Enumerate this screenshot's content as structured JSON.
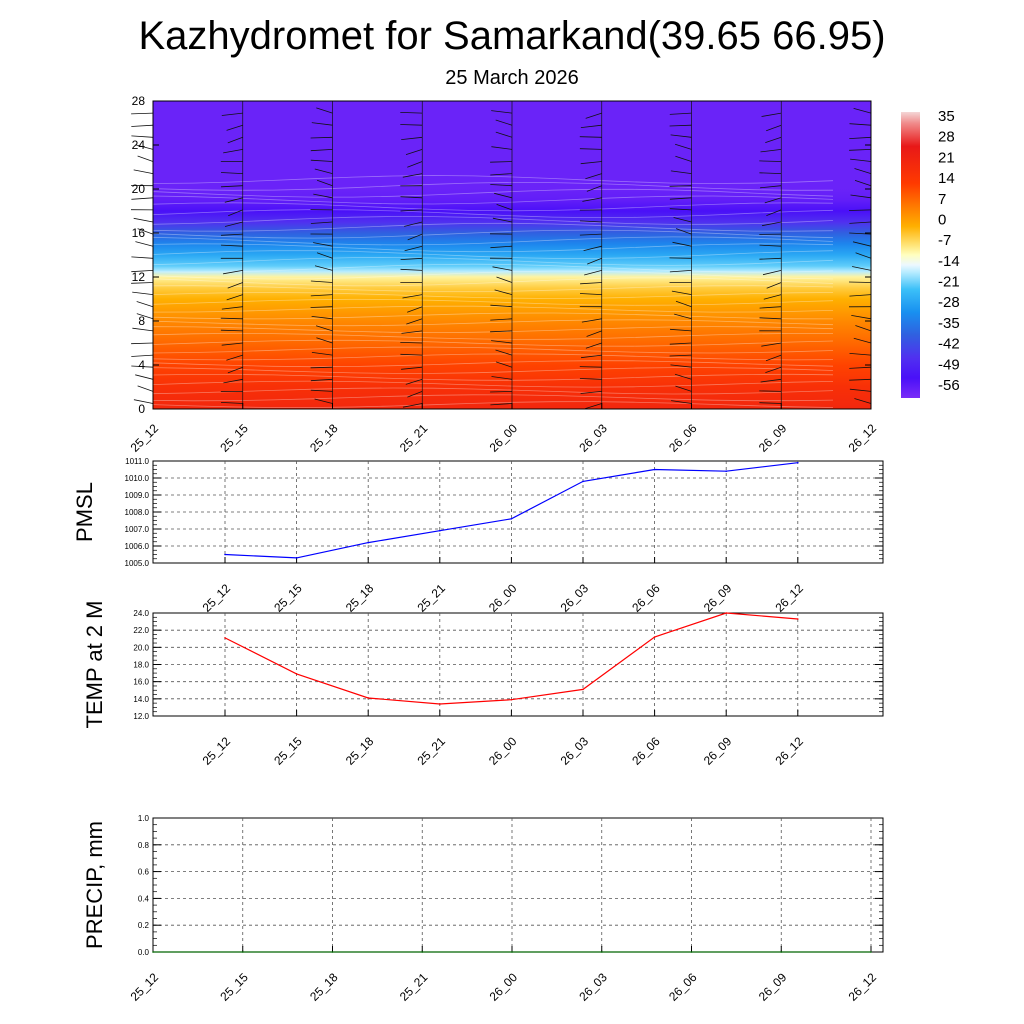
{
  "header": {
    "title": "Kazhydromet for Samarkand(39.65 66.95)",
    "subtitle": "25 March 2026"
  },
  "colors": {
    "pmsl_line": "#0000ff",
    "temp_line": "#ff0000",
    "precip_line": "#006400",
    "grid": "#555555"
  },
  "chart_data": [
    {
      "type": "heatmap",
      "name": "vertical-temperature-section",
      "x_ticks": [
        "25_12",
        "25_15",
        "25_18",
        "25_21",
        "26_00",
        "26_03",
        "26_06",
        "26_09",
        "26_12"
      ],
      "y_ticks": [
        0,
        4,
        8,
        12,
        16,
        20,
        24,
        28
      ],
      "ylim": [
        0,
        28
      ],
      "colorbar": {
        "labels": [
          "35",
          "28",
          "21",
          "14",
          "7",
          "0",
          "-7",
          "-14",
          "-21",
          "-28",
          "-35",
          "-42",
          "-49",
          "-56"
        ]
      },
      "profile": {
        "z": [
          0,
          2,
          4,
          6,
          8,
          10,
          11,
          12,
          12.5,
          13,
          14,
          15,
          16,
          17,
          18,
          19,
          20,
          28
        ],
        "t": [
          21,
          19,
          16,
          12,
          8,
          3,
          0,
          -5,
          -13,
          -18,
          -25,
          -32,
          -40,
          -48,
          -54,
          -57,
          -58,
          -58
        ]
      }
    },
    {
      "type": "line",
      "name": "pmsl",
      "ylabel": "PMSL",
      "x_ticks": [
        "25_12",
        "25_15",
        "25_18",
        "25_21",
        "26_00",
        "26_03",
        "26_06",
        "26_09",
        "26_12"
      ],
      "y_ticks": [
        "1005.0",
        "1006.0",
        "1007.0",
        "1008.0",
        "1009.0",
        "1010.0",
        "1011.0"
      ],
      "ylim": [
        1005,
        1011
      ],
      "values": [
        1005.5,
        1005.3,
        1006.2,
        1006.9,
        1007.6,
        1009.8,
        1010.5,
        1010.4,
        1010.9
      ]
    },
    {
      "type": "line",
      "name": "temp-2m",
      "ylabel": "TEMP at 2 M",
      "x_ticks": [
        "25_12",
        "25_15",
        "25_18",
        "25_21",
        "26_00",
        "26_03",
        "26_06",
        "26_09",
        "26_12"
      ],
      "y_ticks": [
        "12.0",
        "14.0",
        "16.0",
        "18.0",
        "20.0",
        "22.0",
        "24.0"
      ],
      "ylim": [
        12,
        24
      ],
      "values": [
        21.1,
        16.9,
        14.1,
        13.4,
        13.9,
        15.1,
        21.2,
        24.0,
        23.3
      ]
    },
    {
      "type": "line",
      "name": "precip",
      "ylabel": "PRECIP, mm",
      "x_ticks": [
        "25_12",
        "25_15",
        "25_18",
        "25_21",
        "26_00",
        "26_03",
        "26_06",
        "26_09",
        "26_12"
      ],
      "y_ticks": [
        "0.0",
        "0.2",
        "0.4",
        "0.6",
        "0.8",
        "1.0"
      ],
      "ylim": [
        0,
        1
      ],
      "values": [
        0,
        0,
        0,
        0,
        0,
        0,
        0,
        0,
        0
      ]
    }
  ]
}
